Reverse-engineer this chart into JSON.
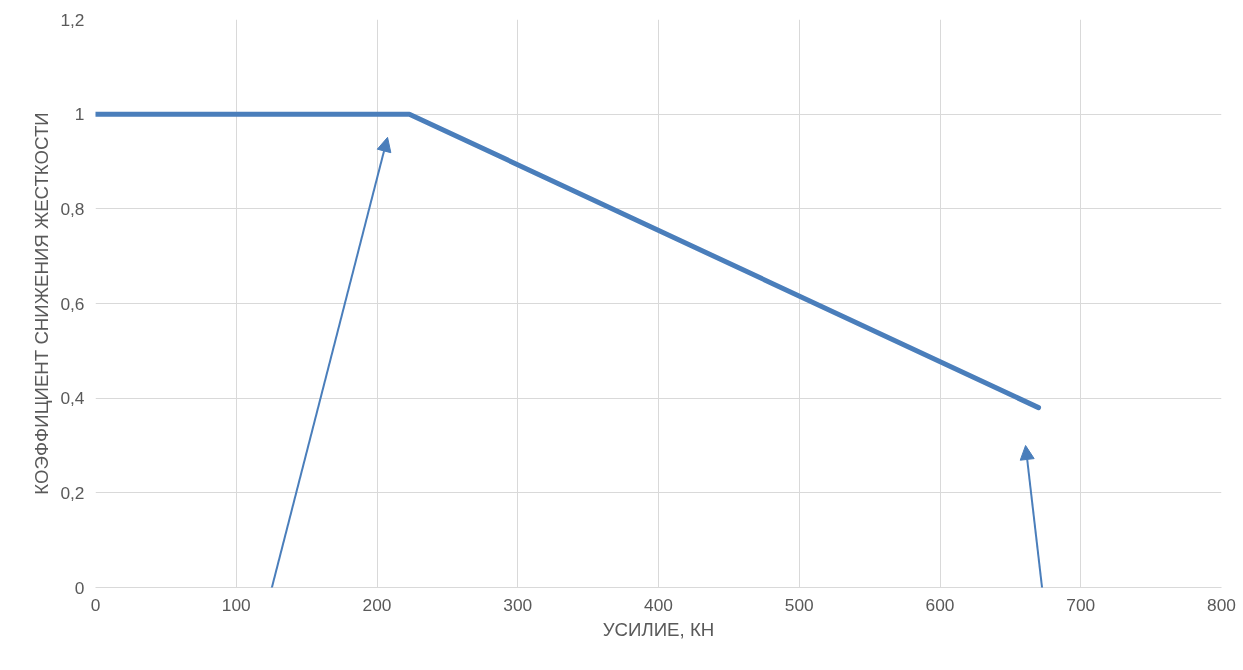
{
  "chart_data": {
    "type": "line",
    "xlabel": "УСИЛИЕ, КН",
    "ylabel": "КОЭФФИЦИЕНТ СНИЖЕНИЯ ЖЕСТКОСТИ",
    "x": [
      0,
      223,
      670
    ],
    "series": [
      {
        "color": "#4a7ebb",
        "values": [
          1,
          1,
          0.38
        ]
      }
    ],
    "xlim": [
      0,
      800
    ],
    "xticks": [
      0,
      100,
      200,
      300,
      400,
      500,
      600,
      700,
      800
    ],
    "ylim": [
      0,
      1.2
    ],
    "yticks": [
      {
        "value": 0,
        "label": "0"
      },
      {
        "value": 0.2,
        "label": "0,2"
      },
      {
        "value": 0.4,
        "label": "0,4"
      },
      {
        "value": 0.6,
        "label": "0,6"
      },
      {
        "value": 0.8,
        "label": "0,8"
      },
      {
        "value": 1,
        "label": "1"
      },
      {
        "value": 1.2,
        "label": "1,2"
      }
    ],
    "grid": true,
    "marker": "none",
    "line_style": "solid"
  }
}
